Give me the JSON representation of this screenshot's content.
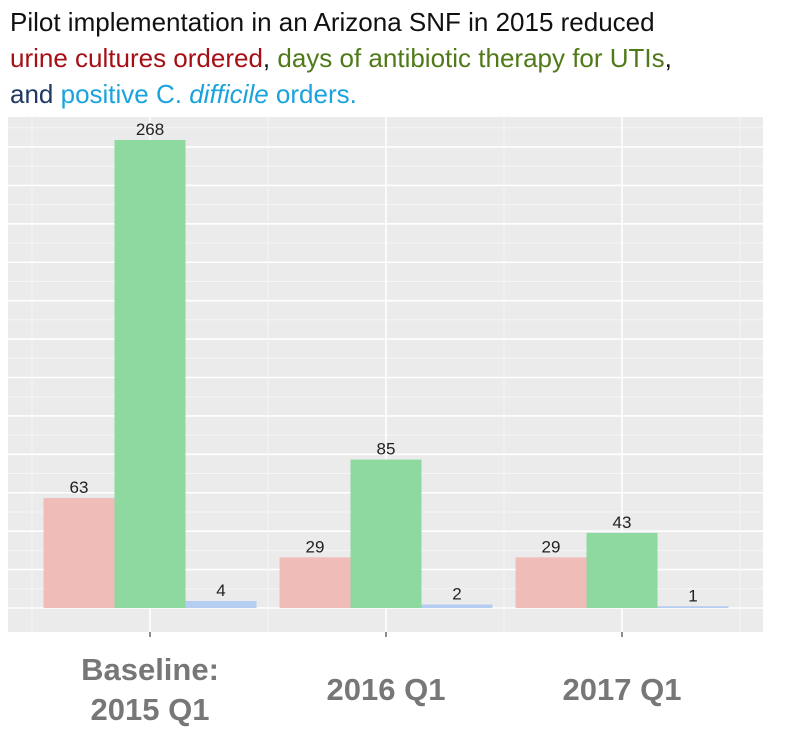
{
  "title": {
    "line1": "Pilot implementation in an Arizona SNF in 2015 reduced",
    "segments_line2": [
      {
        "text": "urine cultures ordered",
        "color": "#a50f15"
      },
      {
        "text": ", ",
        "color": "#111111"
      },
      {
        "text": "days of antibiotic therapy for UTIs",
        "color": "#4f7a17"
      },
      {
        "text": ",",
        "color": "#111111"
      }
    ],
    "and_text": "and ",
    "line3_a": "positive C. ",
    "line3_italic": "difficile",
    "line3_b": " orders."
  },
  "colors": {
    "urine": "#f0bcb8",
    "antibiotic": "#8ed99f",
    "cdiff": "#b5cdf0",
    "cdiff_text": "#1aa3dc",
    "panel_bg": "#ebebeb",
    "grid_major": "#ffffff",
    "grid_minor": "#f5f5f5"
  },
  "chart_data": {
    "type": "bar",
    "categories": [
      [
        "Baseline:",
        "2015 Q1"
      ],
      [
        "2016 Q1"
      ],
      [
        "2017 Q1"
      ]
    ],
    "series": [
      {
        "name": "urine cultures ordered",
        "values": [
          63,
          29,
          29
        ]
      },
      {
        "name": "days of antibiotic therapy for UTIs",
        "values": [
          268,
          85,
          43
        ]
      },
      {
        "name": "positive C. difficile orders",
        "values": [
          4,
          2,
          1
        ]
      }
    ],
    "ylim": [
      0,
      282
    ],
    "xlabel": "",
    "ylabel": "",
    "legend": "none"
  }
}
